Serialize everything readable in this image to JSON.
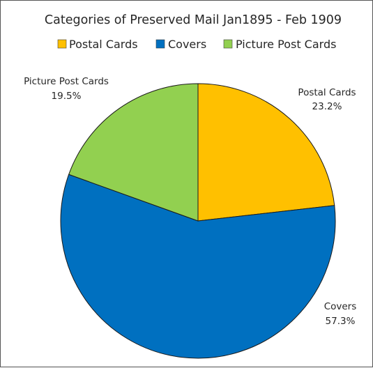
{
  "chart_data": {
    "type": "pie",
    "title": "Categories of Preserved Mail Jan1895 - Feb 1909",
    "legend_position": "top",
    "categories": [
      "Postal Cards",
      "Covers",
      "Picture Post Cards"
    ],
    "values": [
      23.2,
      57.3,
      19.5
    ],
    "data_labels": [
      "23.2%",
      "57.3%",
      "19.5%"
    ],
    "colors": [
      "#FFC000",
      "#0070C0",
      "#92D050"
    ]
  }
}
